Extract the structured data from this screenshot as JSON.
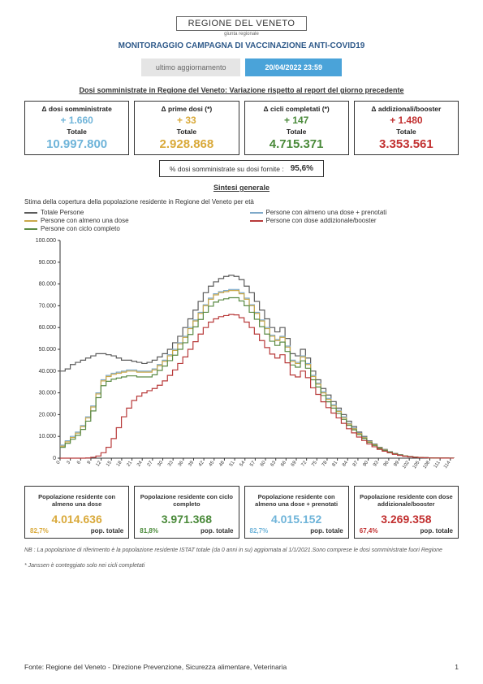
{
  "logo": {
    "text": "REGIONE DEL VENETO",
    "sub": "giunta regionale"
  },
  "title": "MONITORAGGIO CAMPAGNA DI VACCINAZIONE ANTI-COVID19",
  "update": {
    "label": "ultimo aggiornamento",
    "date": "20/04/2022 23:59"
  },
  "section1": "Dosi somministrate in Regione del Veneto: Variazione rispetto al report del giorno precedente",
  "stats": [
    {
      "title": "Δ dosi somministrate",
      "delta": "+ 1.660",
      "totLbl": "Totale",
      "total": "10.997.800",
      "color": "#6fb4d9"
    },
    {
      "title": "Δ prime dosi (*)",
      "delta": "+ 33",
      "totLbl": "Totale",
      "total": "2.928.868",
      "color": "#d9a93a"
    },
    {
      "title": "Δ cicli completati (*)",
      "delta": "+ 147",
      "totLbl": "Totale",
      "total": "4.715.371",
      "color": "#4a8a3a"
    },
    {
      "title": "Δ addizionali/booster",
      "delta": "+ 1.480",
      "totLbl": "Totale",
      "total": "3.353.561",
      "color": "#c23030"
    }
  ],
  "pct": {
    "label": "% dosi somministrate su dosi fornite :",
    "value": "95,6%"
  },
  "section2": "Sintesi generale",
  "chartDesc": "Stima della copertura della popolazione residente in Regione del Veneto per età",
  "legend": [
    {
      "label": "Totale Persone",
      "color": "#5b5b5b"
    },
    {
      "label": "Persone con almeno una dose + prenotati",
      "color": "#7ea9c9"
    },
    {
      "label": "Persone con almeno una dose",
      "color": "#c9a84a"
    },
    {
      "label": "Persone con dose addizionale/booster",
      "color": "#b83a3a"
    },
    {
      "label": "Persone con ciclo completo",
      "color": "#5a8a44"
    }
  ],
  "chart": {
    "ymax": 100000,
    "ystep": 10000,
    "ylabels": [
      "0",
      "10.000",
      "20.000",
      "30.000",
      "40.000",
      "50.000",
      "60.000",
      "70.000",
      "80.000",
      "90.000",
      "100.000"
    ],
    "xmin": 0,
    "xmax": 115,
    "xstep": 3,
    "series": {
      "totale": {
        "color": "#5b5b5b",
        "y": [
          40000,
          41000,
          43000,
          44000,
          45000,
          46000,
          47000,
          48000,
          48000,
          47500,
          47000,
          46000,
          45000,
          45000,
          44500,
          44000,
          43500,
          44000,
          45000,
          46500,
          48000,
          50000,
          53000,
          56000,
          60000,
          64000,
          68000,
          72000,
          76000,
          79000,
          81000,
          82500,
          83500,
          84000,
          83500,
          82000,
          79000,
          76000,
          72000,
          68000,
          64000,
          60000,
          58000,
          60000,
          55000,
          48000,
          47000,
          50000,
          46000,
          40000,
          36000,
          32000,
          29000,
          26000,
          23000,
          20000,
          17000,
          14500,
          12000,
          10000,
          8000,
          6500,
          5000,
          4000,
          3000,
          2200,
          1600,
          1100,
          750,
          500,
          350,
          230,
          150,
          100,
          65,
          42,
          28,
          18
        ]
      },
      "una_pren": {
        "color": "#7ea9c9",
        "y": [
          6000,
          8000,
          10000,
          12000,
          15000,
          19000,
          24000,
          30000,
          36000,
          38000,
          39000,
          39500,
          40000,
          40500,
          40500,
          40000,
          40000,
          40000,
          41000,
          43000,
          45000,
          47500,
          50000,
          53000,
          56000,
          60000,
          63500,
          67000,
          70500,
          73500,
          75500,
          76500,
          77000,
          77500,
          77500,
          76000,
          73500,
          70500,
          67000,
          63500,
          60000,
          56500,
          54500,
          56000,
          51500,
          45000,
          44000,
          47000,
          43500,
          38000,
          34500,
          30500,
          27500,
          24500,
          22000,
          19000,
          16000,
          13800,
          11500,
          9600,
          7700,
          6250,
          4800,
          3850,
          2900,
          2120,
          1550,
          1070,
          720,
          480,
          335,
          220,
          145,
          95,
          62,
          40,
          27,
          17
        ]
      },
      "una_dose": {
        "color": "#c9a84a",
        "y": [
          5500,
          7500,
          9500,
          11500,
          14500,
          18500,
          23500,
          29500,
          35500,
          37500,
          38500,
          39000,
          39500,
          40000,
          40000,
          39500,
          39500,
          39500,
          40500,
          42500,
          44500,
          47000,
          49500,
          52500,
          55500,
          59500,
          63000,
          66500,
          70000,
          73000,
          75000,
          76000,
          76500,
          77000,
          77000,
          75500,
          73000,
          70000,
          66500,
          63000,
          59500,
          56000,
          54000,
          55500,
          51000,
          44500,
          43500,
          46500,
          43000,
          37500,
          34000,
          30000,
          27000,
          24000,
          21500,
          18500,
          15700,
          13500,
          11300,
          9400,
          7500,
          6100,
          4700,
          3750,
          2830,
          2070,
          1510,
          1040,
          705,
          470,
          325,
          215,
          140,
          92,
          60,
          39,
          26,
          17
        ]
      },
      "completo": {
        "color": "#5a8a44",
        "y": [
          5000,
          6800,
          8700,
          10500,
          13200,
          17000,
          21700,
          27800,
          33300,
          35300,
          36300,
          36800,
          37300,
          37800,
          37800,
          37300,
          37300,
          37300,
          38300,
          40300,
          42300,
          44800,
          47300,
          50000,
          53000,
          56800,
          60300,
          63700,
          67000,
          69800,
          71700,
          72700,
          73200,
          73700,
          73700,
          72200,
          70000,
          67000,
          63800,
          60400,
          57000,
          53700,
          51800,
          53300,
          49000,
          42800,
          41800,
          44700,
          41300,
          36000,
          32700,
          28800,
          25900,
          23000,
          20600,
          17800,
          15100,
          13000,
          10800,
          9000,
          7200,
          5850,
          4500,
          3600,
          2720,
          1990,
          1450,
          1000,
          670,
          447,
          310,
          204,
          133,
          88,
          57,
          37,
          25,
          16
        ]
      },
      "booster": {
        "color": "#b83a3a",
        "y": [
          0,
          0,
          0,
          0,
          0,
          100,
          400,
          1000,
          2500,
          5000,
          9000,
          14000,
          19000,
          23000,
          26500,
          28500,
          30000,
          31000,
          32000,
          33500,
          35500,
          38000,
          40500,
          43500,
          46500,
          50000,
          53500,
          57000,
          60000,
          62500,
          64000,
          65000,
          65500,
          66000,
          65800,
          64500,
          62500,
          60000,
          57000,
          54000,
          50800,
          47800,
          46000,
          47500,
          43800,
          38200,
          37300,
          40000,
          37000,
          32300,
          29300,
          25900,
          23200,
          20700,
          18500,
          16000,
          13500,
          11600,
          9700,
          8100,
          6500,
          5250,
          4050,
          3230,
          2440,
          1780,
          1300,
          895,
          602,
          400,
          277,
          182,
          119,
          78,
          51,
          33,
          22,
          14
        ]
      }
    }
  },
  "bottomStats": [
    {
      "title": "Popolazione residente con almeno una dose",
      "value": "4.014.636",
      "pct": "82,7%",
      "color": "#d9a93a"
    },
    {
      "title": "Popolazione residente con ciclo completo",
      "value": "3.971.368",
      "pct": "81,8%",
      "color": "#4a8a3a"
    },
    {
      "title": "Popolazione residente con almeno una dose + prenotati",
      "value": "4.015.152",
      "pct": "82,7%",
      "color": "#6fb4d9"
    },
    {
      "title": "Popolazione residente con dose addizionale/booster",
      "value": "3.269.358",
      "pct": "67,4%",
      "color": "#c23030"
    }
  ],
  "popTotLbl": "pop. totale",
  "notes": [
    "NB : La popolazione di riferimento è la popolazione residente ISTAT totale (da 0 anni in su) aggiornata  al 1/1/2021.Sono comprese le dosi somministrate fuori Regione",
    "* Janssen è conteggiato solo nei cicli completati"
  ],
  "footer": {
    "source": "Fonte: Regione del Veneto - Direzione Prevenzione, Sicurezza alimentare, Veterinaria",
    "page": "1"
  }
}
